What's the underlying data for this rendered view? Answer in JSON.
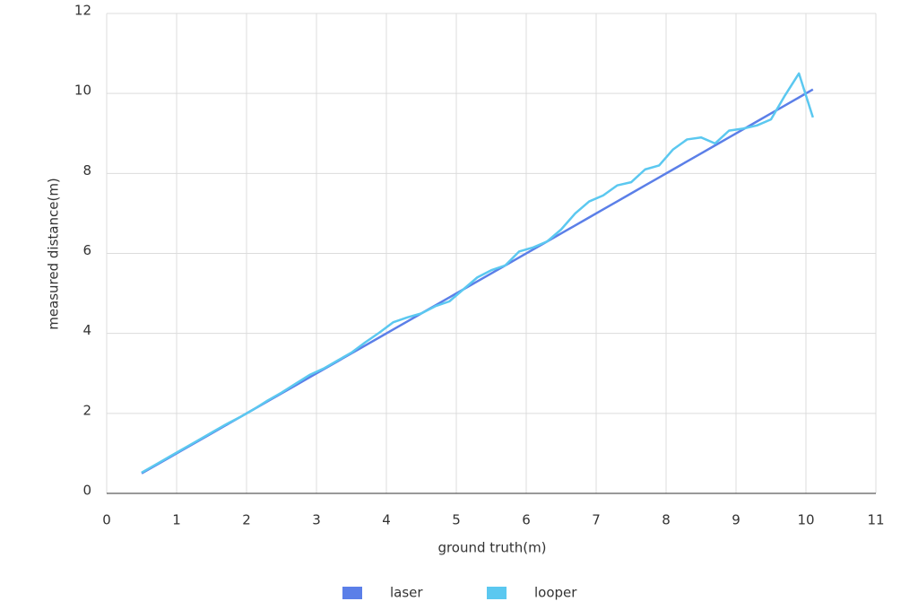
{
  "chart_data": {
    "type": "line",
    "x_label": "ground truth(m)",
    "y_label": "measured distance(m)",
    "x": [
      0.5,
      0.7,
      0.9,
      1.1,
      1.3,
      1.5,
      1.7,
      1.9,
      2.1,
      2.3,
      2.5,
      2.7,
      2.9,
      3.1,
      3.3,
      3.5,
      3.7,
      3.9,
      4.1,
      4.3,
      4.5,
      4.7,
      4.9,
      5.1,
      5.3,
      5.5,
      5.7,
      5.9,
      6.1,
      6.3,
      6.5,
      6.7,
      6.9,
      7.1,
      7.3,
      7.5,
      7.7,
      7.9,
      8.1,
      8.3,
      8.5,
      8.7,
      8.9,
      9.1,
      9.3,
      9.5,
      9.7,
      9.9,
      10.1
    ],
    "series": [
      {
        "name": "laser",
        "color": "#5b7fe8",
        "values": [
          0.5,
          0.7,
          0.9,
          1.1,
          1.3,
          1.5,
          1.7,
          1.9,
          2.1,
          2.3,
          2.5,
          2.7,
          2.9,
          3.1,
          3.3,
          3.5,
          3.7,
          3.9,
          4.1,
          4.3,
          4.5,
          4.7,
          4.9,
          5.1,
          5.3,
          5.5,
          5.7,
          5.9,
          6.1,
          6.3,
          6.5,
          6.7,
          6.9,
          7.1,
          7.3,
          7.5,
          7.7,
          7.9,
          8.1,
          8.3,
          8.5,
          8.7,
          8.9,
          9.1,
          9.3,
          9.5,
          9.7,
          9.9,
          10.1
        ]
      },
      {
        "name": "looper",
        "color": "#5bc8f0",
        "values": [
          0.52,
          0.72,
          0.92,
          1.12,
          1.32,
          1.52,
          1.72,
          1.9,
          2.1,
          2.32,
          2.52,
          2.74,
          2.96,
          3.12,
          3.32,
          3.52,
          3.78,
          4.02,
          4.28,
          4.4,
          4.5,
          4.68,
          4.8,
          5.1,
          5.4,
          5.58,
          5.7,
          6.05,
          6.15,
          6.3,
          6.6,
          7.0,
          7.3,
          7.45,
          7.7,
          7.78,
          8.1,
          8.2,
          8.6,
          8.85,
          8.9,
          8.75,
          9.07,
          9.12,
          9.2,
          9.35,
          9.95,
          10.5,
          9.4
        ]
      }
    ],
    "xlim": [
      0,
      11
    ],
    "xticks": [
      0,
      1,
      2,
      3,
      4,
      5,
      6,
      7,
      8,
      9,
      10,
      11
    ],
    "ylim": [
      0,
      12
    ],
    "yticks": [
      0,
      2,
      4,
      6,
      8,
      10,
      12
    ],
    "grid": true,
    "legend": "bottom"
  }
}
